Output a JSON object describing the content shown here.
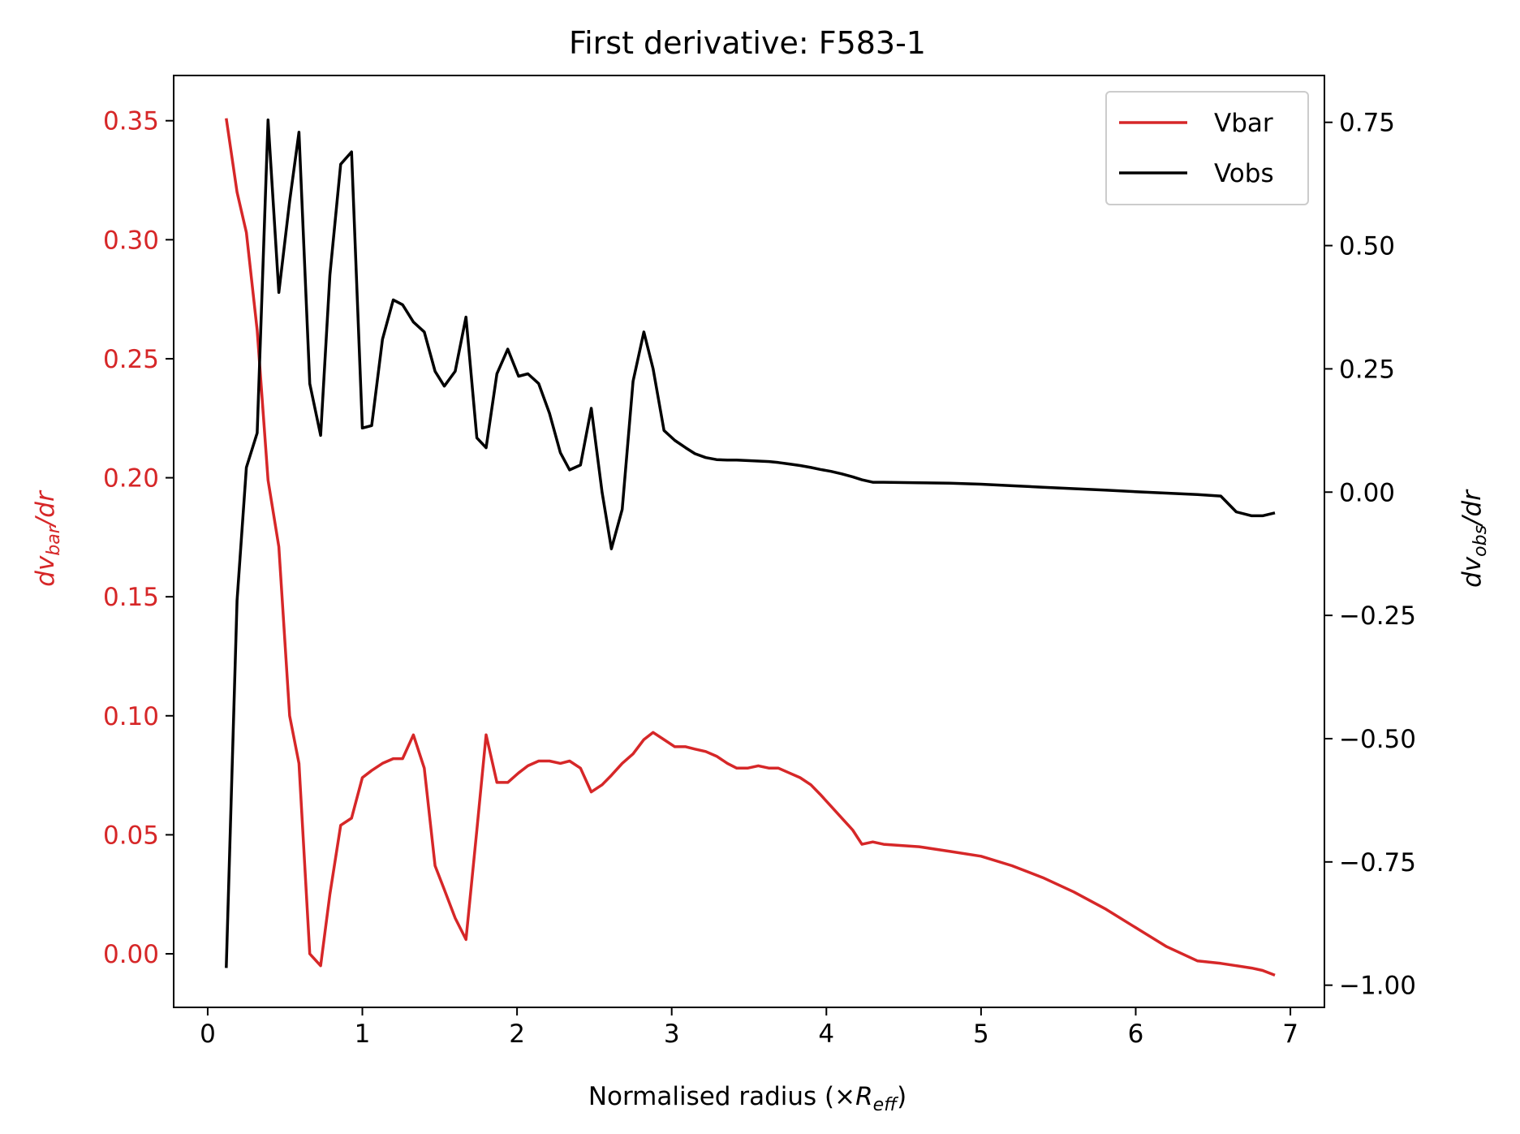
{
  "chart_data": {
    "type": "line",
    "title": "First derivative: F583-1",
    "xlabel": {
      "text": "Normalised radius (×",
      "symbol": "R",
      "subscript": "eff",
      "suffix": ")"
    },
    "ylabel_left": {
      "prefix": "dv",
      "subscript": "bar",
      "suffix": "/dr"
    },
    "ylabel_right": {
      "prefix": "dv",
      "subscript": "obs",
      "suffix": "/dr"
    },
    "xlim": [
      -0.22,
      7.22
    ],
    "ylim_left": [
      -0.0225,
      0.369
    ],
    "ylim_right": [
      -1.045,
      0.845
    ],
    "x_ticks": [
      0,
      1,
      2,
      3,
      4,
      5,
      6,
      7
    ],
    "x_tick_labels": [
      "0",
      "1",
      "2",
      "3",
      "4",
      "5",
      "6",
      "7"
    ],
    "y_left_ticks": [
      0.0,
      0.05,
      0.1,
      0.15,
      0.2,
      0.25,
      0.3,
      0.35
    ],
    "y_left_tick_labels": [
      "0.00",
      "0.05",
      "0.10",
      "0.15",
      "0.20",
      "0.25",
      "0.30",
      "0.35"
    ],
    "y_right_ticks": [
      -1.0,
      -0.75,
      -0.5,
      -0.25,
      0.0,
      0.25,
      0.5,
      0.75
    ],
    "y_right_tick_labels": [
      "−1.00",
      "−0.75",
      "−0.50",
      "−0.25",
      "0.00",
      "0.25",
      "0.50",
      "0.75"
    ],
    "grid": false,
    "legend_position": "top-right",
    "series": [
      {
        "name": "Vbar",
        "axis": "left",
        "color": "#d62728",
        "x": [
          0.12,
          0.19,
          0.25,
          0.32,
          0.39,
          0.46,
          0.53,
          0.59,
          0.66,
          0.73,
          0.79,
          0.86,
          0.93,
          1.0,
          1.06,
          1.13,
          1.2,
          1.26,
          1.33,
          1.4,
          1.47,
          1.53,
          1.6,
          1.67,
          1.74,
          1.8,
          1.87,
          1.94,
          2.01,
          2.07,
          2.14,
          2.21,
          2.28,
          2.34,
          2.41,
          2.48,
          2.55,
          2.61,
          2.68,
          2.75,
          2.82,
          2.88,
          2.95,
          3.02,
          3.09,
          3.15,
          3.22,
          3.29,
          3.36,
          3.42,
          3.49,
          3.56,
          3.63,
          3.69,
          3.76,
          3.83,
          3.9,
          3.96,
          4.03,
          4.1,
          4.17,
          4.23,
          4.3,
          4.37,
          4.6,
          4.8,
          5.0,
          5.2,
          5.4,
          5.6,
          5.8,
          6.0,
          6.2,
          6.4,
          6.55,
          6.65,
          6.75,
          6.82,
          6.9
        ],
        "y": [
          0.351,
          0.32,
          0.303,
          0.262,
          0.199,
          0.171,
          0.1,
          0.08,
          0.0,
          -0.005,
          0.025,
          0.054,
          0.057,
          0.074,
          0.077,
          0.08,
          0.082,
          0.082,
          0.092,
          0.078,
          0.037,
          0.027,
          0.015,
          0.006,
          0.052,
          0.092,
          0.072,
          0.072,
          0.076,
          0.079,
          0.081,
          0.081,
          0.08,
          0.081,
          0.078,
          0.068,
          0.071,
          0.075,
          0.08,
          0.084,
          0.09,
          0.093,
          0.09,
          0.087,
          0.087,
          0.086,
          0.085,
          0.083,
          0.08,
          0.078,
          0.078,
          0.079,
          0.078,
          0.078,
          0.076,
          0.074,
          0.071,
          0.067,
          0.062,
          0.057,
          0.052,
          0.046,
          0.047,
          0.046,
          0.045,
          0.043,
          0.041,
          0.037,
          0.032,
          0.026,
          0.019,
          0.011,
          0.003,
          -0.003,
          -0.004,
          -0.005,
          -0.006,
          -0.007,
          -0.009
        ]
      },
      {
        "name": "Vobs",
        "axis": "right",
        "color": "#000000",
        "x": [
          0.12,
          0.19,
          0.25,
          0.32,
          0.39,
          0.46,
          0.53,
          0.59,
          0.66,
          0.73,
          0.79,
          0.86,
          0.93,
          1.0,
          1.06,
          1.13,
          1.2,
          1.26,
          1.33,
          1.4,
          1.47,
          1.53,
          1.6,
          1.67,
          1.74,
          1.8,
          1.87,
          1.94,
          2.01,
          2.07,
          2.14,
          2.21,
          2.28,
          2.34,
          2.41,
          2.48,
          2.55,
          2.61,
          2.68,
          2.75,
          2.82,
          2.88,
          2.95,
          3.02,
          3.09,
          3.15,
          3.22,
          3.29,
          3.36,
          3.42,
          3.49,
          3.56,
          3.63,
          3.69,
          3.76,
          3.83,
          3.9,
          3.96,
          4.03,
          4.1,
          4.17,
          4.23,
          4.3,
          4.37,
          4.6,
          4.8,
          5.0,
          5.2,
          5.4,
          5.6,
          5.8,
          6.0,
          6.2,
          6.4,
          6.55,
          6.65,
          6.75,
          6.82,
          6.9
        ],
        "y": [
          -0.965,
          -0.22,
          0.05,
          0.12,
          0.755,
          0.405,
          0.59,
          0.73,
          0.22,
          0.115,
          0.44,
          0.665,
          0.69,
          0.13,
          0.135,
          0.31,
          0.39,
          0.38,
          0.345,
          0.325,
          0.245,
          0.215,
          0.245,
          0.355,
          0.11,
          0.09,
          0.24,
          0.29,
          0.235,
          0.24,
          0.22,
          0.16,
          0.08,
          0.045,
          0.055,
          0.17,
          0.0,
          -0.115,
          -0.035,
          0.225,
          0.325,
          0.25,
          0.125,
          0.105,
          0.09,
          0.078,
          0.07,
          0.066,
          0.065,
          0.065,
          0.064,
          0.063,
          0.062,
          0.06,
          0.057,
          0.054,
          0.05,
          0.046,
          0.042,
          0.037,
          0.031,
          0.025,
          0.02,
          0.02,
          0.019,
          0.018,
          0.016,
          0.013,
          0.01,
          0.007,
          0.004,
          0.001,
          -0.002,
          -0.005,
          -0.008,
          -0.04,
          -0.048,
          -0.048,
          -0.042
        ]
      }
    ]
  }
}
